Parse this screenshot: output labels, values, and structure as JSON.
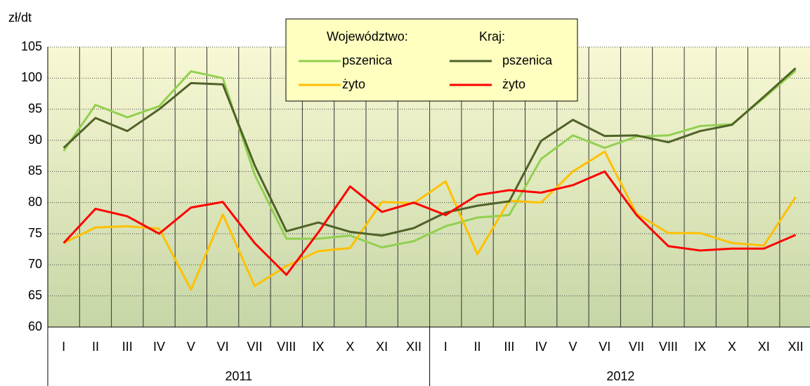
{
  "chart_data": {
    "type": "line",
    "y_label": "zł/dt",
    "categories": [
      "I",
      "II",
      "III",
      "IV",
      "V",
      "VI",
      "VII",
      "VIII",
      "IX",
      "X",
      "XI",
      "XII",
      "I",
      "II",
      "III",
      "IV",
      "V",
      "VI",
      "VII",
      "VIII",
      "IX",
      "X",
      "XI",
      "XII"
    ],
    "groups": [
      "2011",
      "2012"
    ],
    "legend_titles": [
      "Województwo:",
      "Kraj:"
    ],
    "series": [
      {
        "name": "pszenica",
        "color": "#92d050",
        "values": [
          88.3,
          95.7,
          93.7,
          95.5,
          101.1,
          100.0,
          84.5,
          74.2,
          74.2,
          74.7,
          72.8,
          73.8,
          76.2,
          77.6,
          78.0,
          87.0,
          90.8,
          88.8,
          90.6,
          90.8,
          92.3,
          92.6,
          96.8,
          101.2
        ]
      },
      {
        "name": "żyto",
        "color": "#ffc000",
        "values": [
          73.5,
          76.0,
          76.2,
          75.8,
          66.0,
          78.1,
          66.6,
          69.8,
          72.2,
          72.7,
          80.1,
          79.9,
          83.4,
          71.7,
          80.3,
          80.0,
          85.0,
          88.2,
          78.2,
          75.1,
          75.1,
          73.5,
          73.1,
          80.9
        ]
      },
      {
        "name": "pszenica",
        "color": "#4f6228",
        "values": [
          88.8,
          93.6,
          91.5,
          95.0,
          99.2,
          99.0,
          86.0,
          75.4,
          76.8,
          75.3,
          74.7,
          75.9,
          78.4,
          79.5,
          80.2,
          89.9,
          93.3,
          90.7,
          90.8,
          89.7,
          91.5,
          92.5,
          97.0,
          101.6
        ]
      },
      {
        "name": "żyto",
        "color": "#ff0000",
        "values": [
          73.5,
          79.0,
          77.8,
          75.0,
          79.2,
          80.1,
          73.5,
          68.4,
          75.2,
          82.6,
          78.5,
          80.0,
          78.0,
          81.2,
          82.0,
          81.6,
          82.8,
          85.0,
          78.0,
          73.0,
          72.3,
          72.6,
          72.6,
          74.8
        ]
      }
    ],
    "ylim": [
      60,
      105
    ],
    "yticks": [
      60,
      65,
      70,
      75,
      80,
      85,
      90,
      95,
      100,
      105
    ],
    "grid": true
  }
}
